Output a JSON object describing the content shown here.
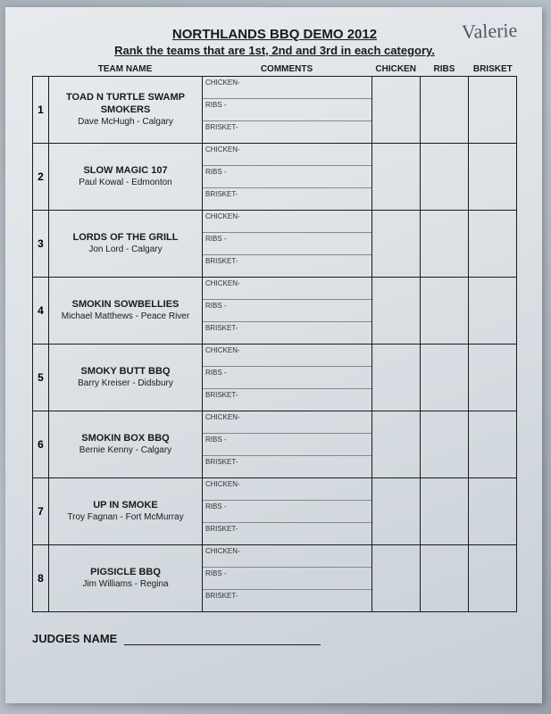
{
  "handwritten": "Valerie",
  "title": "NORTHLANDS BBQ DEMO 2012",
  "subtitle": "Rank the teams that are 1st, 2nd and 3rd in each category.",
  "headers": {
    "team": "TEAM NAME",
    "comments": "COMMENTS",
    "cat1": "CHICKEN",
    "cat2": "RIBS",
    "cat3": "BRISKET"
  },
  "comment_labels": {
    "chicken": "CHICKEN-",
    "ribs": "RIBS -",
    "brisket": "BRISKET-"
  },
  "teams": [
    {
      "num": "1",
      "name": "TOAD N TURTLE SWAMP SMOKERS",
      "sub": "Dave McHugh - Calgary"
    },
    {
      "num": "2",
      "name": "SLOW MAGIC 107",
      "sub": "Paul Kowal - Edmonton"
    },
    {
      "num": "3",
      "name": "LORDS OF THE GRILL",
      "sub": "Jon Lord - Calgary"
    },
    {
      "num": "4",
      "name": "SMOKIN SOWBELLIES",
      "sub": "Michael Matthews - Peace River"
    },
    {
      "num": "5",
      "name": "SMOKY BUTT BBQ",
      "sub": "Barry Kreiser - Didsbury"
    },
    {
      "num": "6",
      "name": "SMOKIN BOX BBQ",
      "sub": "Bernie Kenny - Calgary"
    },
    {
      "num": "7",
      "name": "UP IN SMOKE",
      "sub": "Troy Fagnan - Fort McMurray"
    },
    {
      "num": "8",
      "name": "PIGSICLE BBQ",
      "sub": "Jim Williams - Regina"
    }
  ],
  "judges_label": "JUDGES NAME"
}
